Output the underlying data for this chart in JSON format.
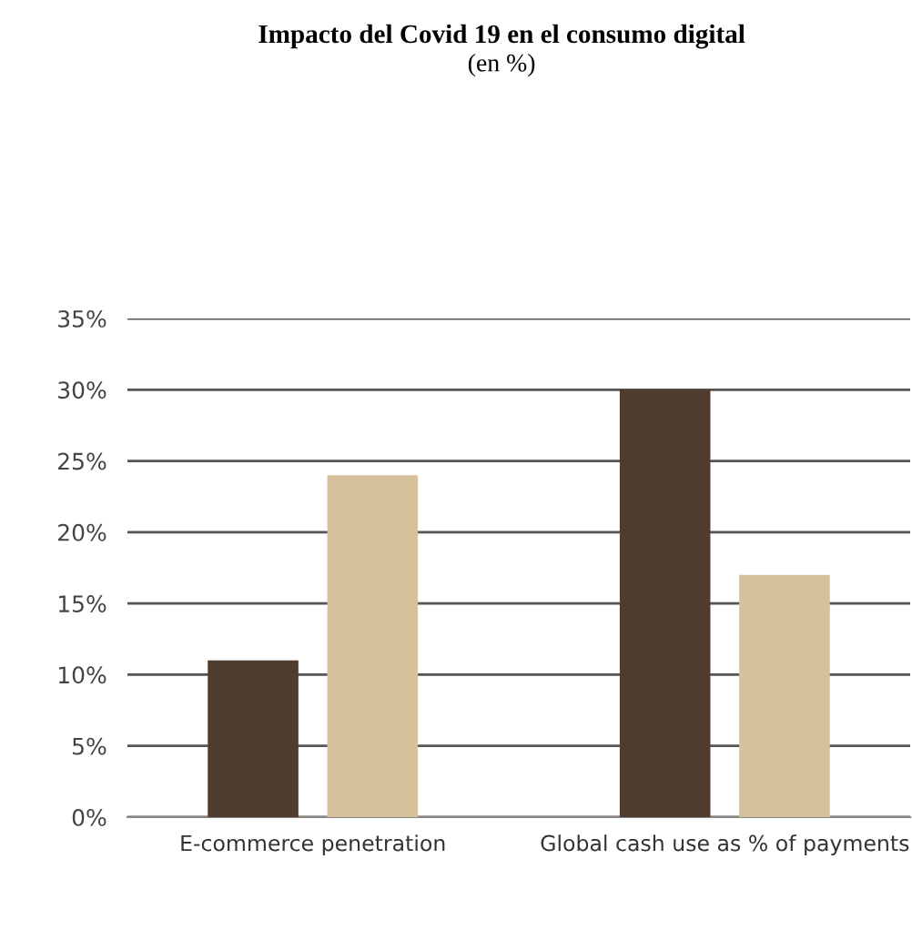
{
  "chart_data": {
    "type": "bar",
    "title": "Impacto del Covid 19 en el consumo digital",
    "subtitle": "(en %)",
    "categories": [
      "E-commerce penetration",
      "Global cash use as % of payments"
    ],
    "series": [
      {
        "color": "#4f3c2f",
        "values": [
          11,
          30
        ]
      },
      {
        "color": "#d5c29d",
        "values": [
          24,
          17
        ]
      }
    ],
    "ylim": [
      0,
      35
    ],
    "yticks": [
      {
        "value": 0,
        "label": "0%"
      },
      {
        "value": 5,
        "label": "5%"
      },
      {
        "value": 10,
        "label": "10%"
      },
      {
        "value": 15,
        "label": "15%"
      },
      {
        "value": 20,
        "label": "20%"
      },
      {
        "value": 25,
        "label": "25%"
      },
      {
        "value": 30,
        "label": "30%"
      },
      {
        "value": 35,
        "label": "35%"
      }
    ],
    "grid": "y",
    "legend": false
  }
}
